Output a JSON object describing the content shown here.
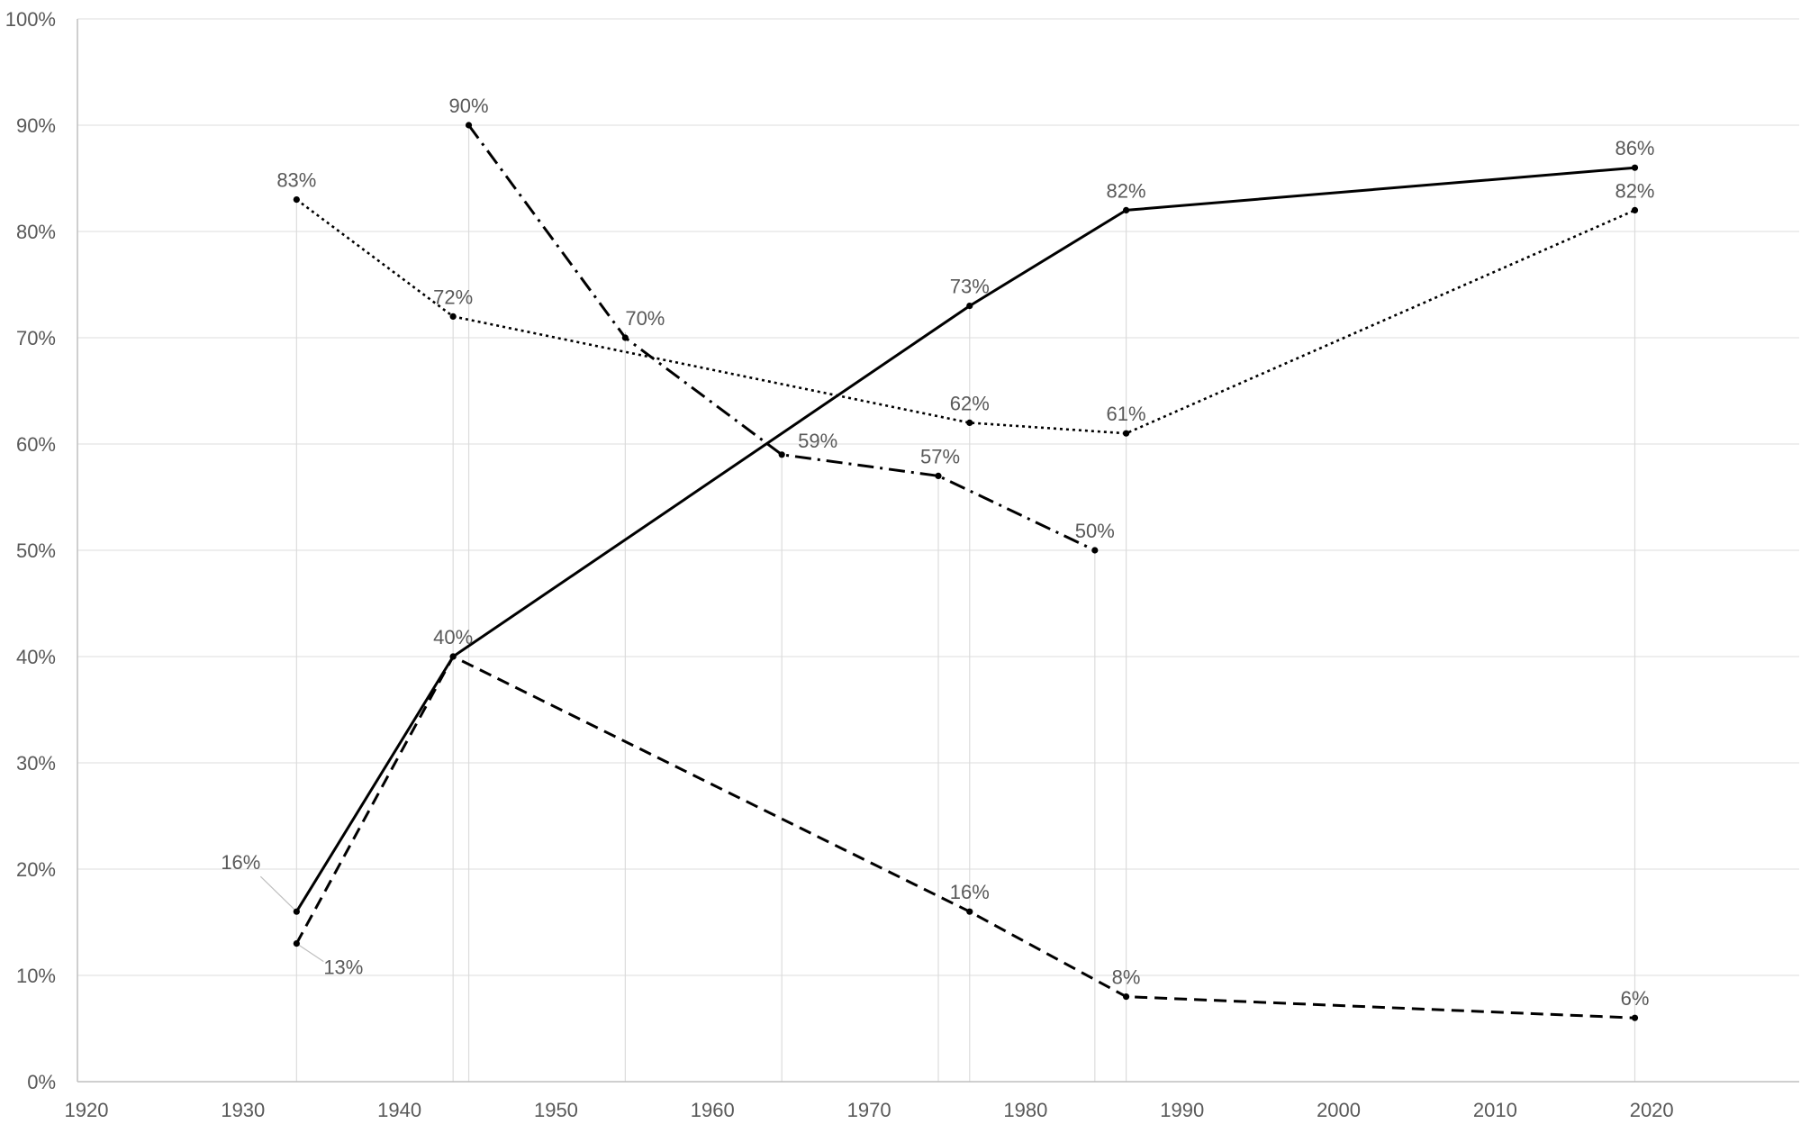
{
  "chart_data": {
    "type": "line",
    "title": "",
    "xlabel": "",
    "ylabel": "",
    "xlim": [
      1920,
      2030
    ],
    "ylim": [
      0,
      100
    ],
    "x_ticks": [
      1920,
      1930,
      1940,
      1950,
      1960,
      1970,
      1980,
      1990,
      2000,
      2010,
      2020
    ],
    "y_ticks": [
      "0%",
      "10%",
      "20%",
      "30%",
      "40%",
      "50%",
      "60%",
      "70%",
      "80%",
      "90%",
      "100%"
    ],
    "grid": "horizontal",
    "legend": "none",
    "series": [
      {
        "style": "solid",
        "color": "#000000",
        "points": [
          {
            "x": 1934,
            "y": 16,
            "label": "16%"
          },
          {
            "x": 1944,
            "y": 40,
            "label": "40%"
          },
          {
            "x": 1977,
            "y": 73,
            "label": "73%"
          },
          {
            "x": 1987,
            "y": 82,
            "label": "82%"
          },
          {
            "x": 2019.5,
            "y": 86,
            "label": "86%"
          }
        ]
      },
      {
        "style": "dashed",
        "color": "#000000",
        "points": [
          {
            "x": 1934,
            "y": 13,
            "label": "13%"
          },
          {
            "x": 1944,
            "y": 40,
            "label": ""
          },
          {
            "x": 1977,
            "y": 16,
            "label": "16%"
          },
          {
            "x": 1987,
            "y": 8,
            "label": "8%"
          },
          {
            "x": 2019.5,
            "y": 6,
            "label": "6%"
          }
        ]
      },
      {
        "style": "dotted",
        "color": "#000000",
        "points": [
          {
            "x": 1934,
            "y": 83,
            "label": "83%"
          },
          {
            "x": 1944,
            "y": 72,
            "label": "72%"
          },
          {
            "x": 1977,
            "y": 62,
            "label": "62%"
          },
          {
            "x": 1987,
            "y": 61,
            "label": "61%"
          },
          {
            "x": 2019.5,
            "y": 82,
            "label": "82%"
          }
        ]
      },
      {
        "style": "dash-dot",
        "color": "#000000",
        "points": [
          {
            "x": 1945,
            "y": 90,
            "label": "90%"
          },
          {
            "x": 1955,
            "y": 70,
            "label": "70%"
          },
          {
            "x": 1965,
            "y": 59,
            "label": "59%"
          },
          {
            "x": 1975,
            "y": 57,
            "label": "57%"
          },
          {
            "x": 1985,
            "y": 50,
            "label": "50%"
          }
        ]
      }
    ]
  }
}
